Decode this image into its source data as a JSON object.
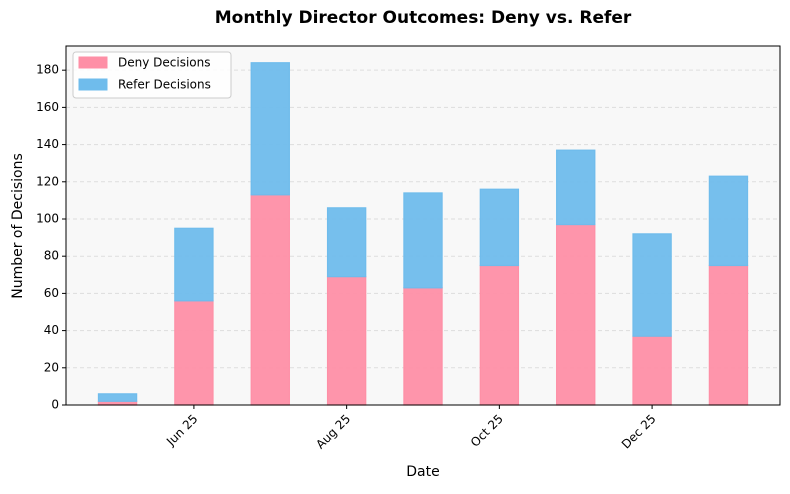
{
  "chart_data": {
    "type": "stacked-bar",
    "title": "Monthly Director Outcomes: Deny vs. Refer",
    "x_label": "Date",
    "y_label": "Number of Decisions",
    "categories": [
      null,
      "Jun 25",
      null,
      "Aug 25",
      null,
      "Oct 25",
      null,
      "Dec 25",
      null
    ],
    "series": [
      {
        "name": "Deny Decisions",
        "color": "#fe8fa6",
        "values": [
          2,
          56,
          113,
          69,
          63,
          75,
          97,
          37,
          75
        ]
      },
      {
        "name": "Refer Decisions",
        "color": "#6fbcec",
        "values": [
          4,
          39,
          71,
          37,
          51,
          41,
          40,
          55,
          48
        ]
      }
    ],
    "ylim": [
      0,
      193
    ],
    "yticks": [
      0,
      20,
      40,
      60,
      80,
      100,
      120,
      140,
      160,
      180
    ],
    "grid": true,
    "legend": "upper-left"
  }
}
